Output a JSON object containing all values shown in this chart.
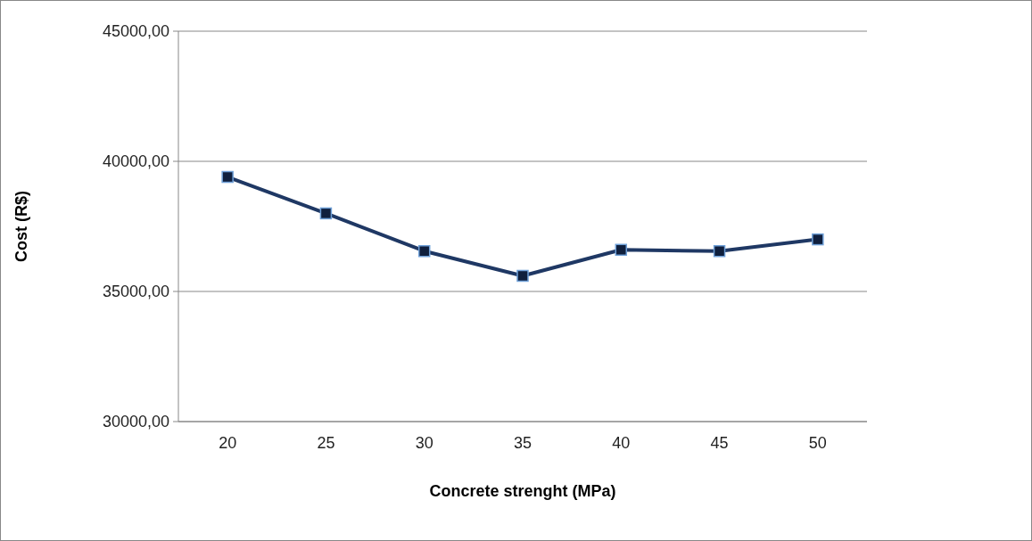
{
  "chart_data": {
    "type": "line",
    "xlabel": "Concrete strenght (MPa)",
    "ylabel": "Cost (R$)",
    "categories": [
      "20",
      "25",
      "30",
      "35",
      "40",
      "45",
      "50"
    ],
    "series": [
      {
        "color": "#1f3864",
        "values": [
          39400,
          38000,
          36550,
          35600,
          36600,
          36550,
          37000
        ]
      }
    ],
    "ylim": [
      30000,
      45000
    ],
    "yticks": [
      {
        "value": 30000,
        "label": "30000,00"
      },
      {
        "value": 35000,
        "label": "35000,00"
      },
      {
        "value": 40000,
        "label": "40000,00"
      },
      {
        "value": 45000,
        "label": "45000,00"
      }
    ],
    "grid": "y",
    "marker": "square",
    "line_style": "solid"
  }
}
